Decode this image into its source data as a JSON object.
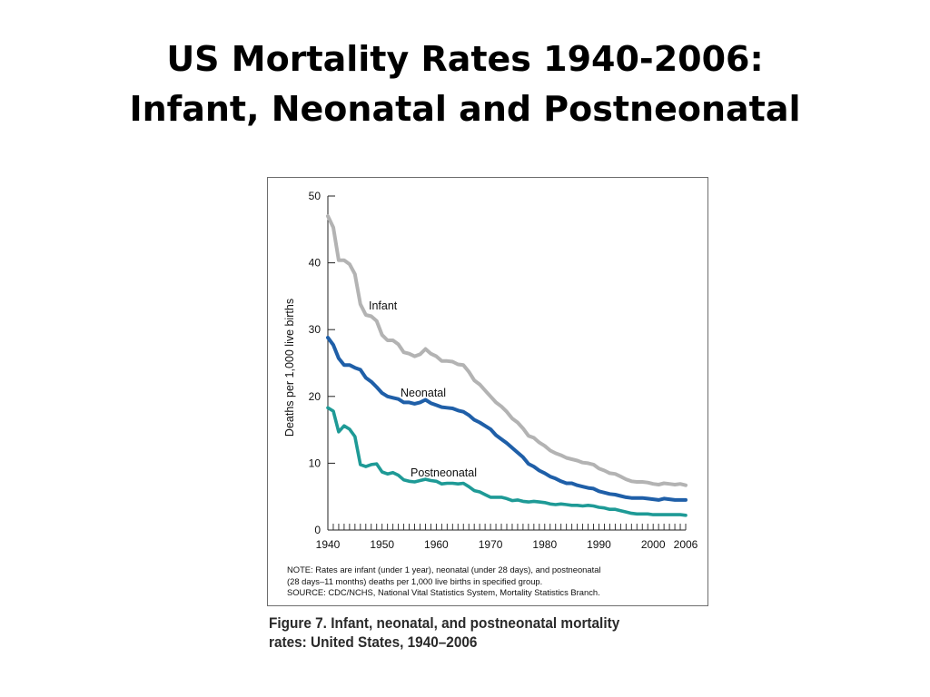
{
  "slide": {
    "title_line1": "US Mortality Rates 1940-2006:",
    "title_line2": "Infant, Neonatal and Postneonatal"
  },
  "figure": {
    "note_line1": "NOTE: Rates are infant (under 1 year), neonatal (under 28 days), and postneonatal",
    "note_line2": "(28 days–11 months) deaths per 1,000 live births in specified group.",
    "source": "SOURCE: CDC/NCHS, National Vital Statistics System, Mortality Statistics Branch.",
    "caption_line1": "Figure 7. Infant, neonatal, and postneonatal mortality",
    "caption_line2": "rates: United States, 1940–2006"
  },
  "chart_data": {
    "type": "line",
    "title": "",
    "ylabel": "Deaths per 1,000 live births",
    "xlabel": "",
    "xlim": [
      1940,
      2006
    ],
    "ylim": [
      0,
      50
    ],
    "x_ticks": [
      "1940",
      "1950",
      "1960",
      "1970",
      "1980",
      "1990",
      "2000",
      "2006"
    ],
    "y_ticks": [
      "0",
      "10",
      "20",
      "30",
      "40",
      "50"
    ],
    "grid": false,
    "legend": "inline labels",
    "colors": {
      "Infant": "#b3b3b3",
      "Neonatal": "#1f5fa8",
      "Postneonatal": "#1e9a96"
    },
    "series": [
      {
        "name": "Infant",
        "points": [
          [
            1940,
            47.0
          ],
          [
            1941,
            45.3
          ],
          [
            1942,
            40.4
          ],
          [
            1943,
            40.4
          ],
          [
            1944,
            39.8
          ],
          [
            1945,
            38.3
          ],
          [
            1946,
            33.8
          ],
          [
            1947,
            32.2
          ],
          [
            1948,
            32.0
          ],
          [
            1949,
            31.3
          ],
          [
            1950,
            29.2
          ],
          [
            1951,
            28.4
          ],
          [
            1952,
            28.4
          ],
          [
            1953,
            27.8
          ],
          [
            1954,
            26.6
          ],
          [
            1955,
            26.4
          ],
          [
            1956,
            26.0
          ],
          [
            1957,
            26.3
          ],
          [
            1958,
            27.1
          ],
          [
            1959,
            26.4
          ],
          [
            1960,
            26.0
          ],
          [
            1961,
            25.3
          ],
          [
            1962,
            25.3
          ],
          [
            1963,
            25.2
          ],
          [
            1964,
            24.8
          ],
          [
            1965,
            24.7
          ],
          [
            1966,
            23.7
          ],
          [
            1967,
            22.4
          ],
          [
            1968,
            21.8
          ],
          [
            1969,
            20.9
          ],
          [
            1970,
            20.0
          ],
          [
            1971,
            19.1
          ],
          [
            1972,
            18.5
          ],
          [
            1973,
            17.7
          ],
          [
            1974,
            16.7
          ],
          [
            1975,
            16.1
          ],
          [
            1976,
            15.2
          ],
          [
            1977,
            14.1
          ],
          [
            1978,
            13.8
          ],
          [
            1979,
            13.1
          ],
          [
            1980,
            12.6
          ],
          [
            1981,
            11.9
          ],
          [
            1982,
            11.5
          ],
          [
            1983,
            11.2
          ],
          [
            1984,
            10.8
          ],
          [
            1985,
            10.6
          ],
          [
            1986,
            10.4
          ],
          [
            1987,
            10.1
          ],
          [
            1988,
            10.0
          ],
          [
            1989,
            9.8
          ],
          [
            1990,
            9.2
          ],
          [
            1991,
            8.9
          ],
          [
            1992,
            8.5
          ],
          [
            1993,
            8.4
          ],
          [
            1994,
            8.0
          ],
          [
            1995,
            7.6
          ],
          [
            1996,
            7.3
          ],
          [
            1997,
            7.2
          ],
          [
            1998,
            7.2
          ],
          [
            1999,
            7.1
          ],
          [
            2000,
            6.9
          ],
          [
            2001,
            6.8
          ],
          [
            2002,
            7.0
          ],
          [
            2003,
            6.9
          ],
          [
            2004,
            6.8
          ],
          [
            2005,
            6.9
          ],
          [
            2006,
            6.7
          ]
        ]
      },
      {
        "name": "Neonatal",
        "points": [
          [
            1940,
            28.8
          ],
          [
            1941,
            27.7
          ],
          [
            1942,
            25.7
          ],
          [
            1943,
            24.7
          ],
          [
            1944,
            24.7
          ],
          [
            1945,
            24.3
          ],
          [
            1946,
            24.0
          ],
          [
            1947,
            22.8
          ],
          [
            1948,
            22.2
          ],
          [
            1949,
            21.4
          ],
          [
            1950,
            20.5
          ],
          [
            1951,
            20.0
          ],
          [
            1952,
            19.8
          ],
          [
            1953,
            19.6
          ],
          [
            1954,
            19.1
          ],
          [
            1955,
            19.1
          ],
          [
            1956,
            18.9
          ],
          [
            1957,
            19.1
          ],
          [
            1958,
            19.5
          ],
          [
            1959,
            19.0
          ],
          [
            1960,
            18.7
          ],
          [
            1961,
            18.4
          ],
          [
            1962,
            18.3
          ],
          [
            1963,
            18.2
          ],
          [
            1964,
            17.9
          ],
          [
            1965,
            17.7
          ],
          [
            1966,
            17.2
          ],
          [
            1967,
            16.5
          ],
          [
            1968,
            16.1
          ],
          [
            1969,
            15.6
          ],
          [
            1970,
            15.1
          ],
          [
            1971,
            14.2
          ],
          [
            1972,
            13.6
          ],
          [
            1973,
            13.0
          ],
          [
            1974,
            12.3
          ],
          [
            1975,
            11.6
          ],
          [
            1976,
            10.9
          ],
          [
            1977,
            9.9
          ],
          [
            1978,
            9.5
          ],
          [
            1979,
            8.9
          ],
          [
            1980,
            8.5
          ],
          [
            1981,
            8.0
          ],
          [
            1982,
            7.7
          ],
          [
            1983,
            7.3
          ],
          [
            1984,
            7.0
          ],
          [
            1985,
            7.0
          ],
          [
            1986,
            6.7
          ],
          [
            1987,
            6.5
          ],
          [
            1988,
            6.3
          ],
          [
            1989,
            6.2
          ],
          [
            1990,
            5.8
          ],
          [
            1991,
            5.6
          ],
          [
            1992,
            5.4
          ],
          [
            1993,
            5.3
          ],
          [
            1994,
            5.1
          ],
          [
            1995,
            4.9
          ],
          [
            1996,
            4.8
          ],
          [
            1997,
            4.8
          ],
          [
            1998,
            4.8
          ],
          [
            1999,
            4.7
          ],
          [
            2000,
            4.6
          ],
          [
            2001,
            4.5
          ],
          [
            2002,
            4.7
          ],
          [
            2003,
            4.6
          ],
          [
            2004,
            4.5
          ],
          [
            2005,
            4.5
          ],
          [
            2006,
            4.5
          ]
        ]
      },
      {
        "name": "Postneonatal",
        "points": [
          [
            1940,
            18.3
          ],
          [
            1941,
            17.8
          ],
          [
            1942,
            14.7
          ],
          [
            1943,
            15.6
          ],
          [
            1944,
            15.1
          ],
          [
            1945,
            14.0
          ],
          [
            1946,
            9.8
          ],
          [
            1947,
            9.5
          ],
          [
            1948,
            9.8
          ],
          [
            1949,
            9.9
          ],
          [
            1950,
            8.7
          ],
          [
            1951,
            8.4
          ],
          [
            1952,
            8.6
          ],
          [
            1953,
            8.2
          ],
          [
            1954,
            7.5
          ],
          [
            1955,
            7.3
          ],
          [
            1956,
            7.2
          ],
          [
            1957,
            7.4
          ],
          [
            1958,
            7.6
          ],
          [
            1959,
            7.4
          ],
          [
            1960,
            7.3
          ],
          [
            1961,
            6.9
          ],
          [
            1962,
            7.0
          ],
          [
            1963,
            7.0
          ],
          [
            1964,
            6.9
          ],
          [
            1965,
            7.0
          ],
          [
            1966,
            6.5
          ],
          [
            1967,
            5.9
          ],
          [
            1968,
            5.7
          ],
          [
            1969,
            5.3
          ],
          [
            1970,
            4.9
          ],
          [
            1971,
            4.9
          ],
          [
            1972,
            4.9
          ],
          [
            1973,
            4.7
          ],
          [
            1974,
            4.4
          ],
          [
            1975,
            4.5
          ],
          [
            1976,
            4.3
          ],
          [
            1977,
            4.2
          ],
          [
            1978,
            4.3
          ],
          [
            1979,
            4.2
          ],
          [
            1980,
            4.1
          ],
          [
            1981,
            3.9
          ],
          [
            1982,
            3.8
          ],
          [
            1983,
            3.9
          ],
          [
            1984,
            3.8
          ],
          [
            1985,
            3.7
          ],
          [
            1986,
            3.7
          ],
          [
            1987,
            3.6
          ],
          [
            1988,
            3.7
          ],
          [
            1989,
            3.6
          ],
          [
            1990,
            3.4
          ],
          [
            1991,
            3.3
          ],
          [
            1992,
            3.1
          ],
          [
            1993,
            3.1
          ],
          [
            1994,
            2.9
          ],
          [
            1995,
            2.7
          ],
          [
            1996,
            2.5
          ],
          [
            1997,
            2.4
          ],
          [
            1998,
            2.4
          ],
          [
            1999,
            2.4
          ],
          [
            2000,
            2.3
          ],
          [
            2001,
            2.3
          ],
          [
            2002,
            2.3
          ],
          [
            2003,
            2.3
          ],
          [
            2004,
            2.3
          ],
          [
            2005,
            2.3
          ],
          [
            2006,
            2.2
          ]
        ]
      }
    ]
  }
}
